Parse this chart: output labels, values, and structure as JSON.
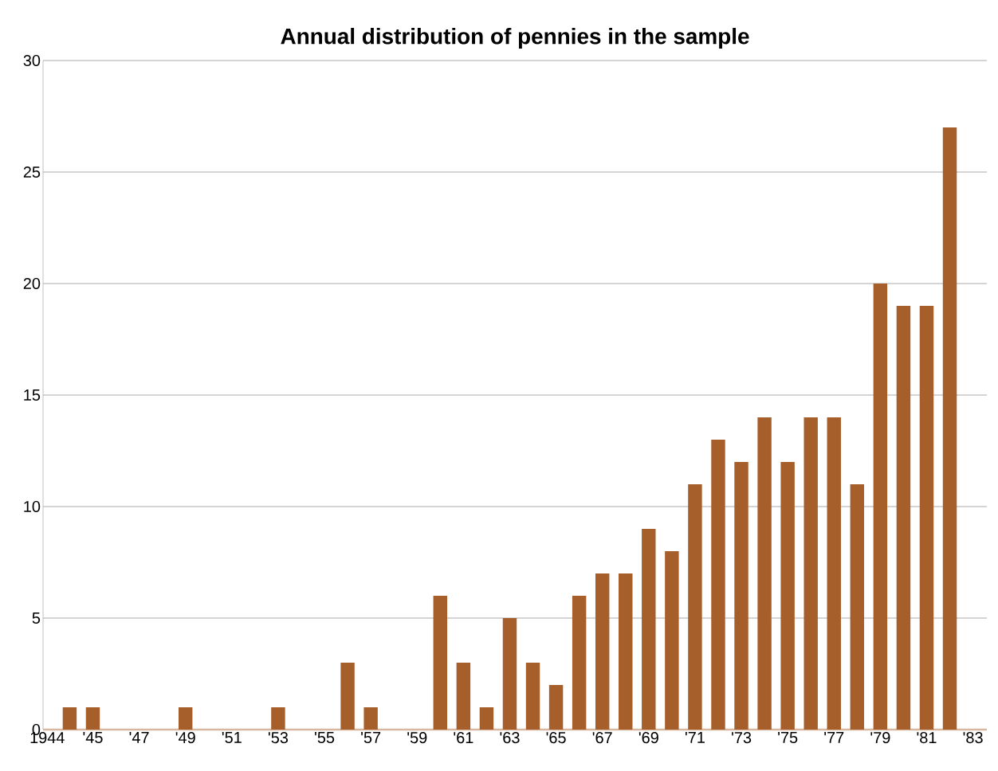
{
  "chart_data": {
    "type": "bar",
    "title": "Annual distribution of pennies in the sample",
    "categories": [
      "1944",
      "'45",
      null,
      "'47",
      null,
      "'49",
      null,
      "'51",
      null,
      "'53",
      null,
      "'55",
      null,
      "'57",
      null,
      "'59",
      null,
      "'61",
      null,
      "'63",
      null,
      "'65",
      null,
      "'67",
      null,
      "'69",
      null,
      "'71",
      null,
      "'73",
      null,
      "'75",
      null,
      "'77",
      null,
      "'79",
      null,
      "'81",
      null,
      "'83"
    ],
    "values": [
      1,
      1,
      0,
      0,
      0,
      1,
      0,
      0,
      0,
      1,
      0,
      0,
      3,
      1,
      0,
      0,
      6,
      3,
      1,
      5,
      3,
      2,
      6,
      7,
      7,
      9,
      8,
      11,
      13,
      12,
      14,
      12,
      14,
      14,
      11,
      20,
      19,
      19,
      27,
      null
    ],
    "color": "#a65e2a",
    "ylim": [
      0,
      30
    ],
    "yticks": [
      0,
      5,
      10,
      15,
      20,
      25,
      30
    ],
    "grid": "y"
  }
}
